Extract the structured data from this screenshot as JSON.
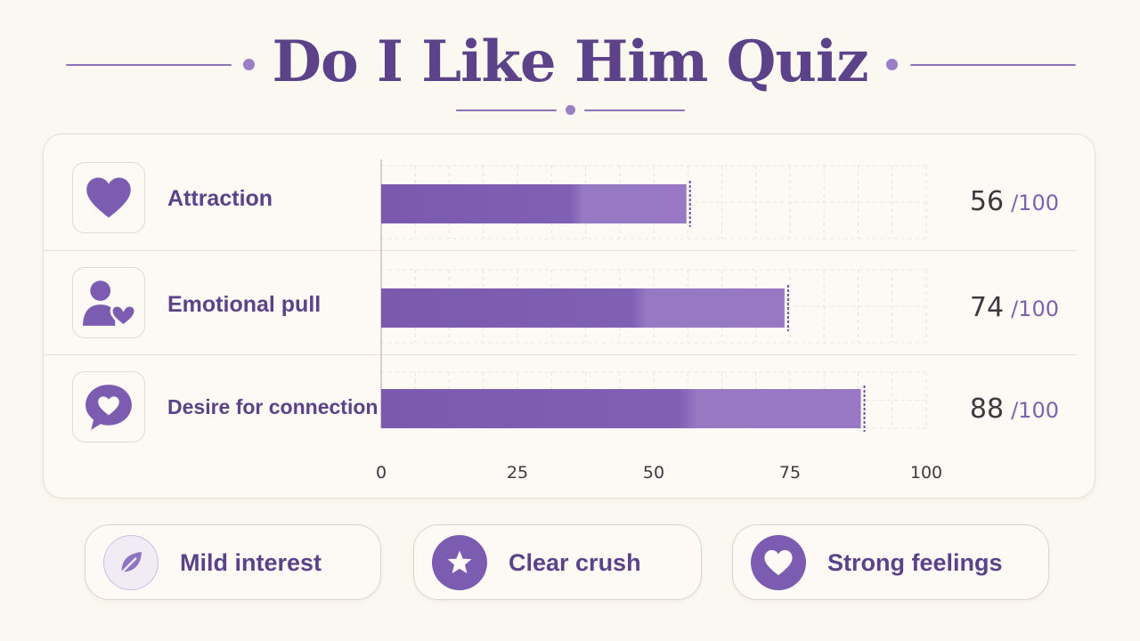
{
  "title": "Do I Like Him Quiz",
  "colors": {
    "accent": "#7c5cb0",
    "accent_light": "#9a7fc7",
    "background": "#fbf7f1",
    "text_dark": "#3b3a3f"
  },
  "chart_data": {
    "type": "bar",
    "orientation": "horizontal",
    "categories": [
      "Attraction",
      "Emotional pull",
      "Desire for connection"
    ],
    "values": [
      56,
      74,
      88
    ],
    "value_suffix": "/100",
    "xlim": [
      0,
      100
    ],
    "xticks": [
      0,
      25,
      50,
      75,
      100
    ],
    "tick_labels": [
      "0",
      "25",
      "50",
      "75",
      "100"
    ],
    "grid": true,
    "icons": [
      "heart-icon",
      "person-heart-icon",
      "speech-bubble-heart-icon"
    ]
  },
  "legend": [
    {
      "label": "Mild interest",
      "icon": "leaf-icon"
    },
    {
      "label": "Clear crush",
      "icon": "star-icon"
    },
    {
      "label": "Strong feelings",
      "icon": "heart-icon"
    }
  ]
}
